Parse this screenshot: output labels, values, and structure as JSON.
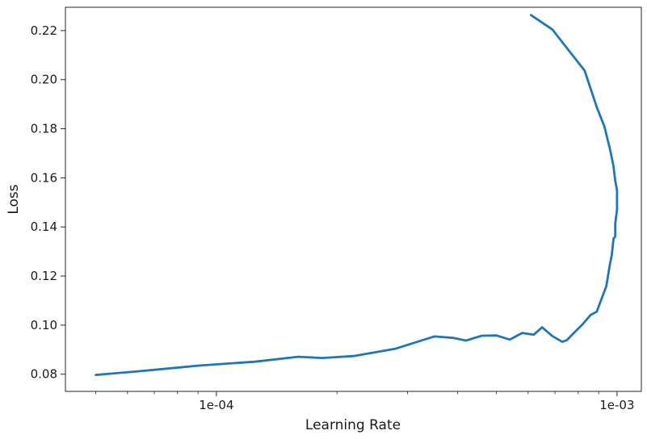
{
  "chart_data": {
    "type": "line",
    "title": "",
    "xlabel": "Learning Rate",
    "ylabel": "Loss",
    "xscale": "log",
    "xlim": [
      4.2e-05,
      0.00115
    ],
    "ylim": [
      0.073,
      0.2295
    ],
    "grid": false,
    "line_color": "#1f77b4",
    "x_ticks": [
      {
        "value": 0.0001,
        "label": "1e-04"
      },
      {
        "value": 0.001,
        "label": "1e-03"
      }
    ],
    "x_minor_ticks": [
      5e-05,
      6e-05,
      7e-05,
      8e-05,
      9e-05,
      0.0002,
      0.0003,
      0.0004,
      0.0005,
      0.0006,
      0.0007,
      0.0008,
      0.0009
    ],
    "y_ticks": [
      {
        "value": 0.08,
        "label": "0.08"
      },
      {
        "value": 0.1,
        "label": "0.10"
      },
      {
        "value": 0.12,
        "label": "0.12"
      },
      {
        "value": 0.14,
        "label": "0.14"
      },
      {
        "value": 0.16,
        "label": "0.16"
      },
      {
        "value": 0.18,
        "label": "0.18"
      },
      {
        "value": 0.2,
        "label": "0.20"
      },
      {
        "value": 0.22,
        "label": "0.22"
      }
    ],
    "series": [
      {
        "x": [
          5e-05,
          6.3e-05,
          7.9e-05,
          9e-05,
          0.000106,
          0.000125,
          0.00016,
          0.000184,
          0.00022,
          0.00028,
          0.00035,
          0.00039,
          0.00042,
          0.00046,
          0.0005,
          0.00054,
          0.00058,
          0.00062,
          0.00065,
          0.00069,
          0.00073,
          0.00075,
          0.00078,
          0.00082,
          0.00086,
          0.00089,
          0.00091,
          0.00094,
          0.00096,
          0.00097,
          0.00098,
          0.00099,
          0.00099,
          0.001,
          0.001,
          0.00099,
          0.00098,
          0.00096,
          0.00093,
          0.00089,
          0.00083,
          0.00076,
          0.00069,
          0.00061
        ],
        "y": [
          0.0797,
          0.0811,
          0.0826,
          0.0835,
          0.0843,
          0.0851,
          0.0871,
          0.0866,
          0.0874,
          0.0904,
          0.0954,
          0.0948,
          0.0937,
          0.0957,
          0.0958,
          0.0941,
          0.0968,
          0.0961,
          0.0991,
          0.0955,
          0.0932,
          0.0939,
          0.0968,
          0.1003,
          0.1042,
          0.1055,
          0.1097,
          0.1158,
          0.1248,
          0.1283,
          0.1351,
          0.1362,
          0.1413,
          0.1471,
          0.1549,
          0.1588,
          0.1648,
          0.1718,
          0.1809,
          0.1888,
          0.2037,
          0.2116,
          0.2204,
          0.2263
        ]
      }
    ]
  }
}
